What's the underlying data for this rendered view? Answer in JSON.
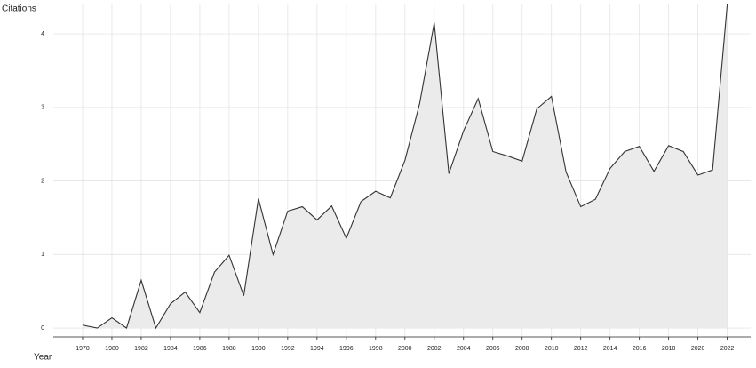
{
  "chart_data": {
    "type": "area",
    "y_label": "Citations",
    "x_label": "Year",
    "x": [
      1978,
      1979,
      1980,
      1981,
      1982,
      1983,
      1984,
      1985,
      1986,
      1987,
      1988,
      1989,
      1990,
      1991,
      1992,
      1993,
      1994,
      1995,
      1996,
      1997,
      1998,
      1999,
      2000,
      2001,
      2002,
      2003,
      2004,
      2005,
      2006,
      2007,
      2008,
      2009,
      2010,
      2011,
      2012,
      2013,
      2014,
      2015,
      2016,
      2017,
      2018,
      2019,
      2020,
      2021,
      2022
    ],
    "values": [
      0.04,
      0.0,
      0.14,
      0.0,
      0.65,
      0.0,
      0.33,
      0.49,
      0.21,
      0.76,
      0.99,
      0.44,
      1.76,
      1.0,
      1.59,
      1.65,
      1.47,
      1.66,
      1.22,
      1.72,
      1.86,
      1.77,
      2.28,
      3.05,
      4.15,
      2.1,
      2.68,
      3.12,
      2.4,
      2.34,
      2.27,
      2.98,
      3.15,
      2.12,
      1.65,
      1.75,
      2.17,
      2.4,
      2.47,
      2.13,
      2.48,
      2.4,
      2.08,
      2.15,
      4.4
    ],
    "color": "#333333",
    "fill": "#ebebeb",
    "xlim": [
      1976,
      2023.6
    ],
    "ylim": [
      -0.12,
      4.4
    ],
    "xticks": [
      1978,
      1980,
      1982,
      1984,
      1986,
      1988,
      1990,
      1992,
      1994,
      1996,
      1998,
      2000,
      2002,
      2004,
      2006,
      2008,
      2010,
      2012,
      2014,
      2016,
      2018,
      2020,
      2022
    ],
    "yticks": [
      0,
      1,
      2,
      3,
      4
    ],
    "grid": true
  }
}
